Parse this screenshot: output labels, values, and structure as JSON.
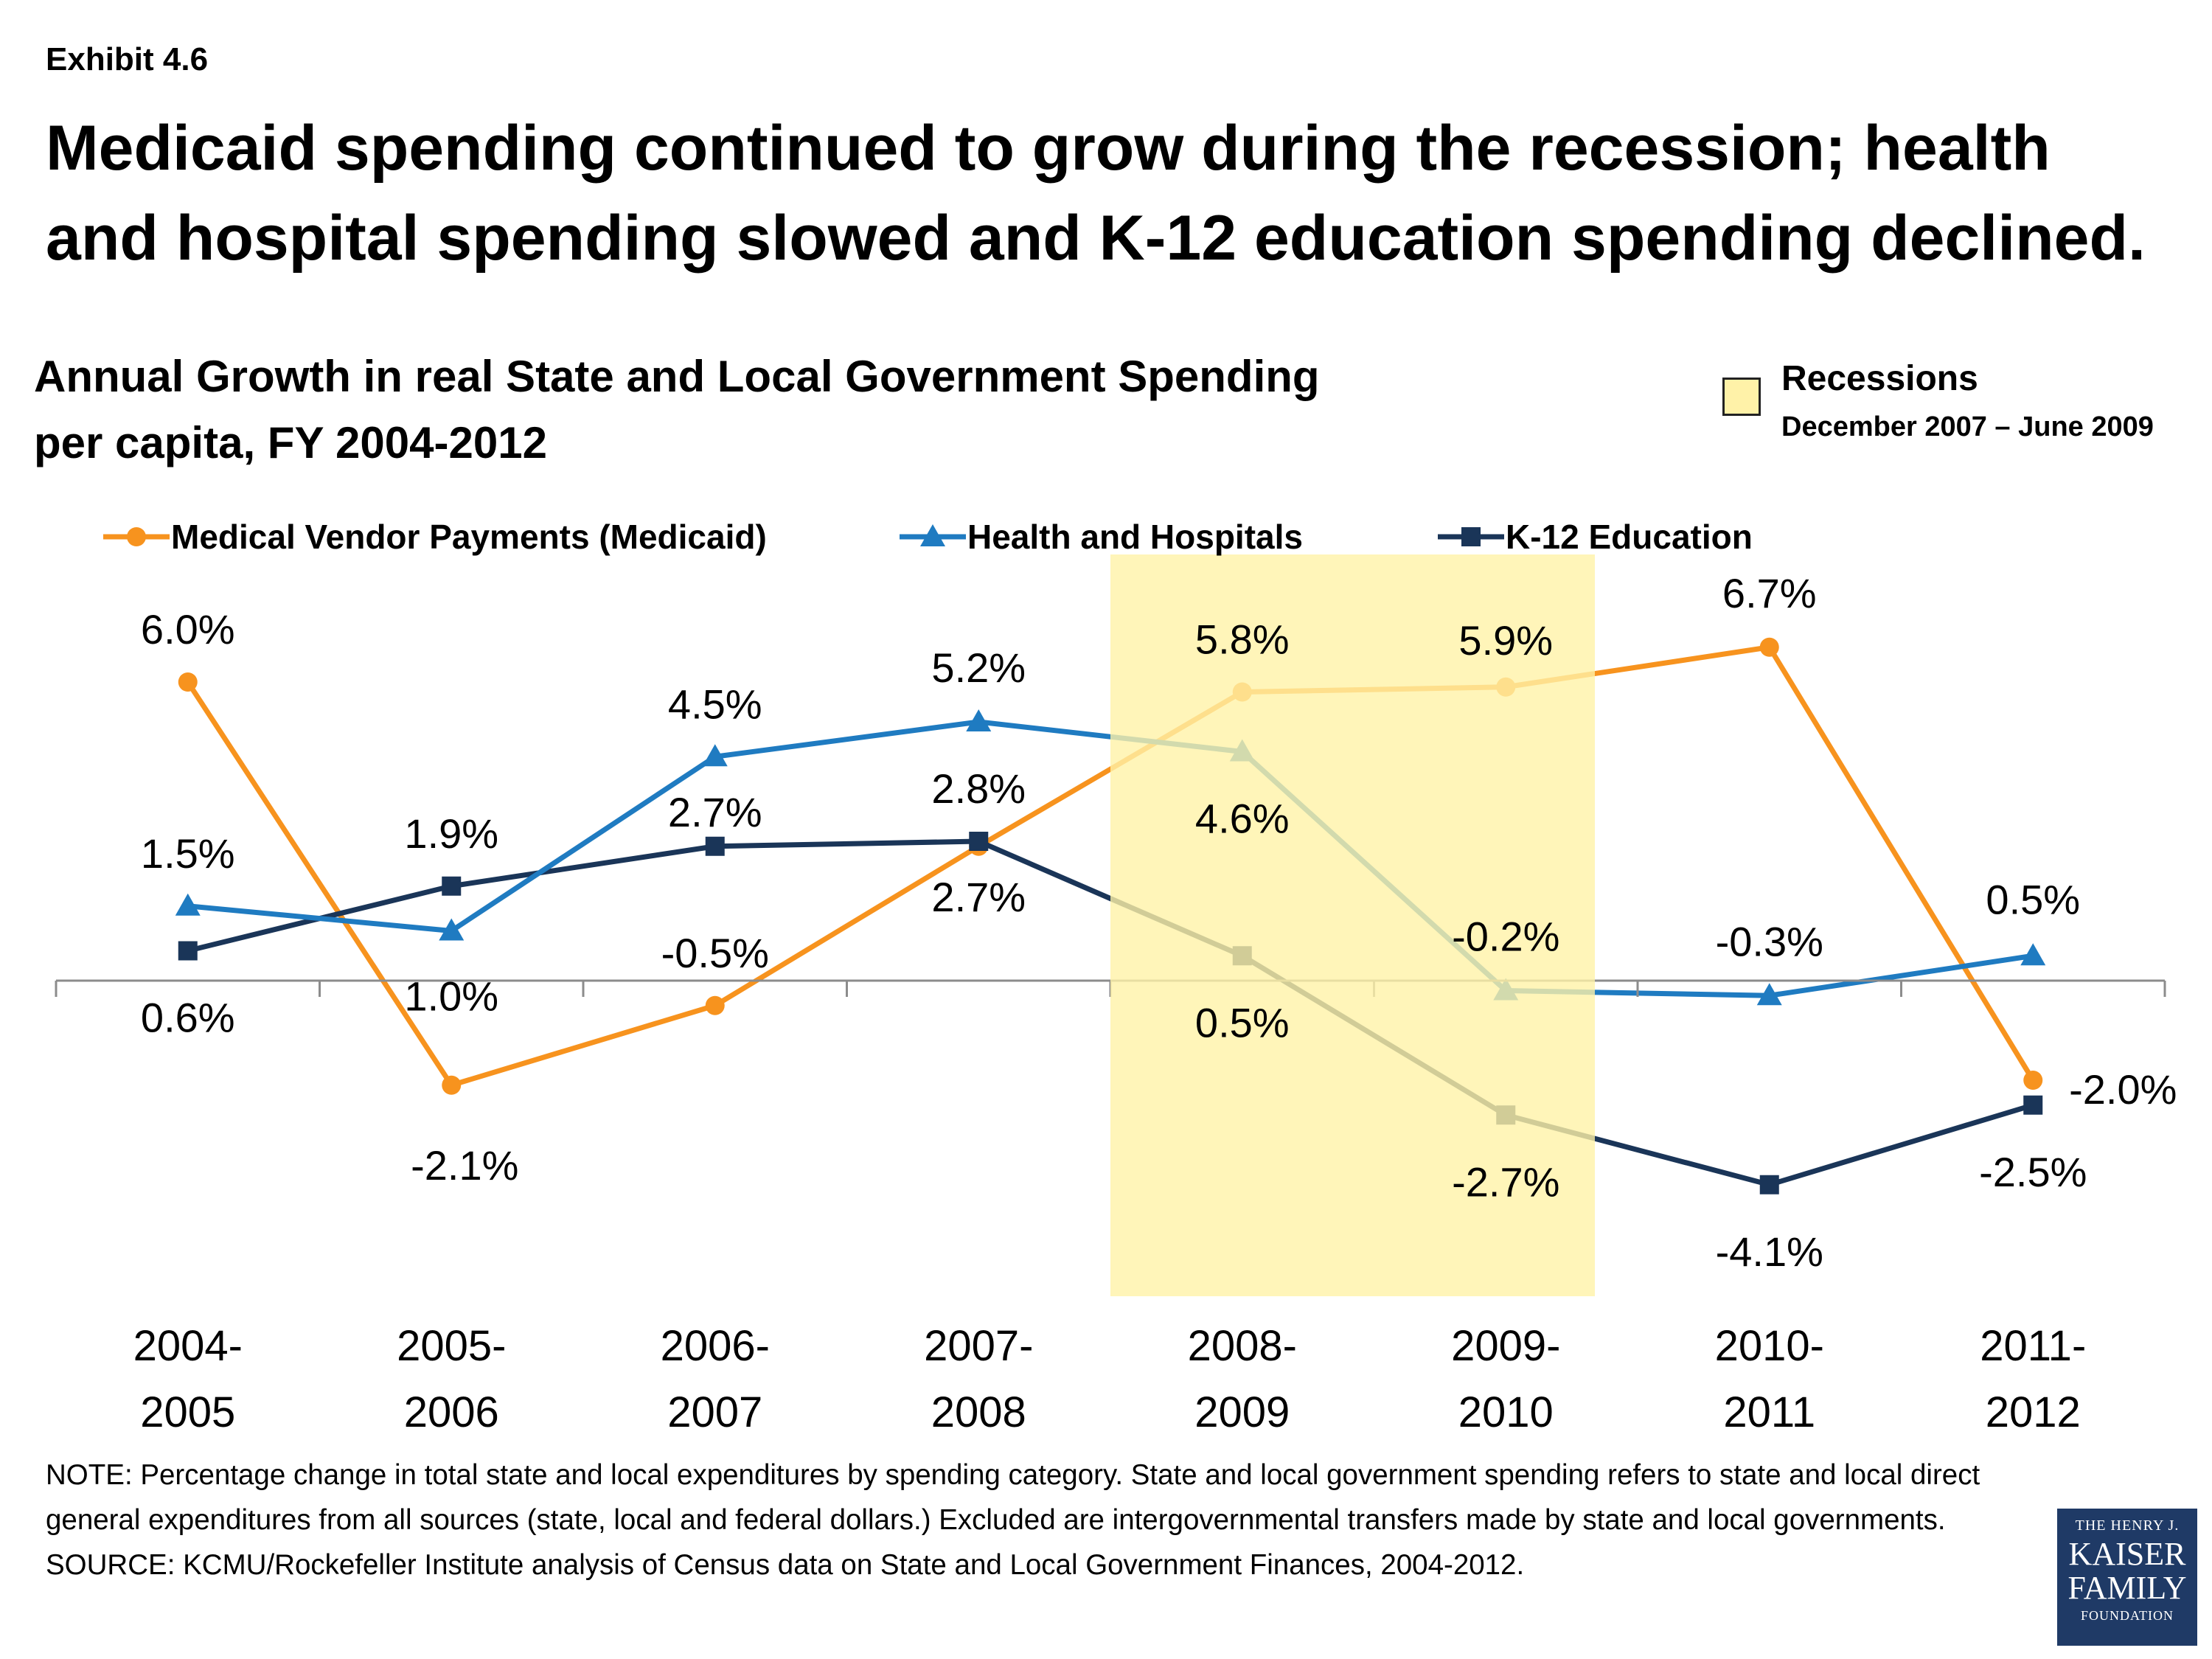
{
  "exhibit": "Exhibit 4.6",
  "headline_line1": "Medicaid spending continued to grow during the recession; health",
  "headline_line2": "and hospital spending slowed and K-12 education spending declined.",
  "recession": {
    "label": "Recessions",
    "range": "December 2007 – June 2009",
    "color": "#fff2a8"
  },
  "note": "NOTE: Percentage change in total state and local expenditures by spending category. State and local government spending refers to state and local direct general expenditures from all sources (state, local and federal dollars.) Excluded are intergovernmental transfers made by state and local governments.",
  "source": "SOURCE: KCMU/Rockefeller Institute analysis of Census data on State and Local Government Finances, 2004-2012.",
  "logo": {
    "line1": "THE HENRY J.",
    "line2": "KAISER",
    "line3": "FAMILY",
    "line4": "FOUNDATION"
  },
  "chart_data": {
    "type": "line",
    "title_line1": "Annual Growth in real State and Local Government Spending",
    "title_line2": "per capita, FY 2004-2012",
    "categories": [
      [
        "2004-",
        "2005"
      ],
      [
        "2005-",
        "2006"
      ],
      [
        "2006-",
        "2007"
      ],
      [
        "2007-",
        "2008"
      ],
      [
        "2008-",
        "2009"
      ],
      [
        "2009-",
        "2010"
      ],
      [
        "2010-",
        "2011"
      ],
      [
        "2011-",
        "2012"
      ]
    ],
    "ylim": [
      -6,
      8
    ],
    "legend_position": "top",
    "shaded_region": {
      "from_category": 4,
      "to_category": 5
    },
    "series": [
      {
        "name": "Medical Vendor Payments (Medicaid)",
        "marker": "circle",
        "color": "#f7931e",
        "values": [
          6.0,
          -2.1,
          -0.5,
          2.7,
          5.8,
          5.9,
          6.7,
          -2.0
        ],
        "labels": [
          "6.0%",
          "-2.1%",
          "-0.5%",
          "2.7%",
          "5.8%",
          "5.9%",
          "6.7%",
          "-2.0%"
        ]
      },
      {
        "name": "Health and Hospitals",
        "marker": "triangle",
        "color": "#1f7bc1",
        "values": [
          1.5,
          1.0,
          4.5,
          5.2,
          4.6,
          -0.2,
          -0.3,
          0.5
        ],
        "labels": [
          "1.5%",
          "1.0%",
          "4.5%",
          "5.2%",
          "4.6%",
          "-0.2%",
          "-0.3%",
          "0.5%"
        ]
      },
      {
        "name": "K-12 Education",
        "marker": "square",
        "color": "#1a3558",
        "values": [
          0.6,
          1.9,
          2.7,
          2.8,
          0.5,
          -2.7,
          -4.1,
          -2.5
        ],
        "labels": [
          "0.6%",
          "1.9%",
          "2.7%",
          "2.8%",
          "0.5%",
          "-2.7%",
          "-4.1%",
          "-2.5%"
        ]
      }
    ]
  }
}
